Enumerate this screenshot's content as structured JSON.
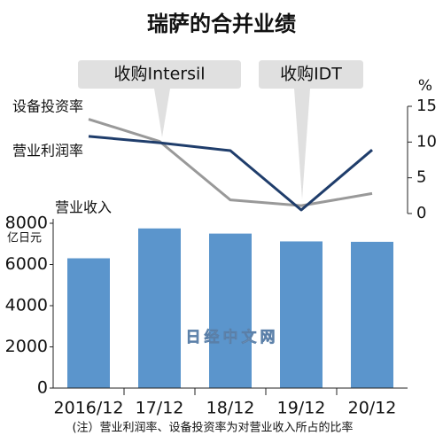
{
  "title": "瑞萨的合并业绩",
  "annotations": [
    "收购Intersil",
    "收购IDT"
  ],
  "footnote": "(注）营业利润率、设备投资率为对营业收入所占的比率",
  "watermark": "日经中文网",
  "chart_data": [
    {
      "type": "line",
      "y_label": "%",
      "ylim": [
        0,
        15
      ],
      "yticks": [
        0,
        5,
        10,
        15
      ],
      "series": [
        {
          "name": "设备投资率",
          "color": "#999999",
          "values": [
            13.2,
            10.1,
            1.9,
            1.1,
            2.8
          ]
        },
        {
          "name": "营业利润率",
          "color": "#1f3d6b",
          "values": [
            10.8,
            9.9,
            8.8,
            0.5,
            8.9
          ]
        }
      ]
    },
    {
      "type": "bar",
      "name": "营业收入",
      "y_label": "亿日元",
      "color": "#5b95cc",
      "categories": [
        "2016/12",
        "17/12",
        "18/12",
        "19/12",
        "20/12"
      ],
      "values": [
        6300,
        7750,
        7500,
        7120,
        7100
      ],
      "ylim": [
        0,
        8000
      ],
      "yticks": [
        0,
        2000,
        4000,
        6000,
        8000
      ]
    }
  ]
}
